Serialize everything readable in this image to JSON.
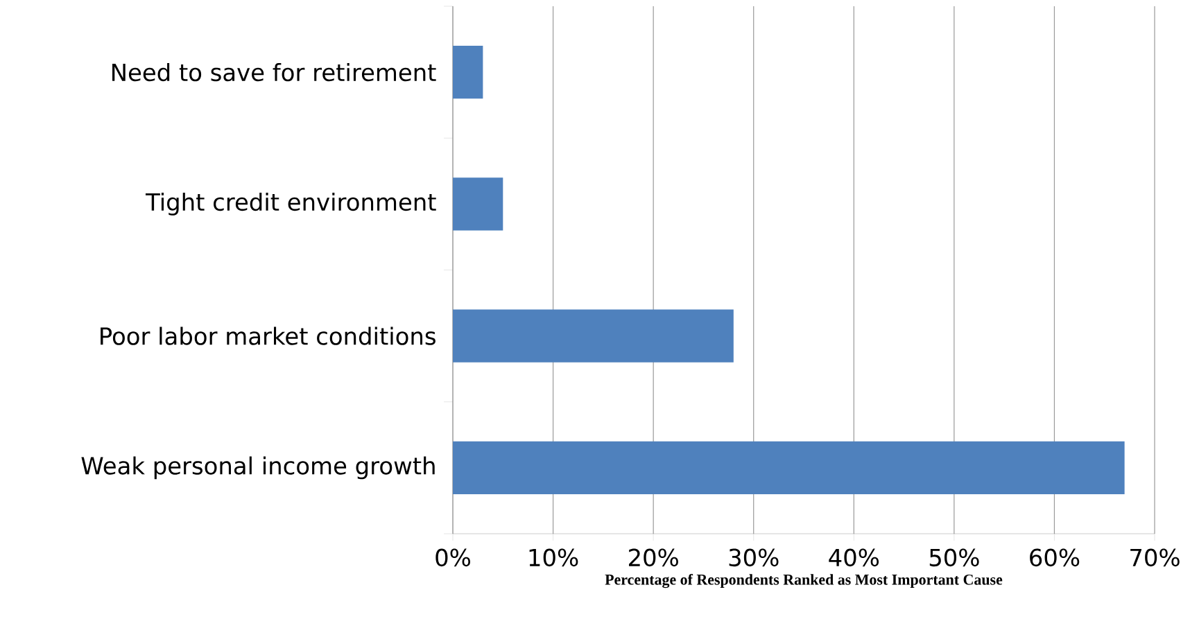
{
  "chart_data": {
    "type": "bar",
    "orientation": "horizontal",
    "categories": [
      "Need to save for retirement",
      "Tight credit environment",
      "Poor labor market conditions",
      "Weak personal income growth"
    ],
    "values": [
      3,
      5,
      28,
      67
    ],
    "color": "#4f81bd",
    "xlim": [
      0,
      70
    ],
    "xticks": [
      {
        "value": 0,
        "label": "0%"
      },
      {
        "value": 10,
        "label": "10%"
      },
      {
        "value": 20,
        "label": "20%"
      },
      {
        "value": 30,
        "label": "30%"
      },
      {
        "value": 40,
        "label": "40%"
      },
      {
        "value": 50,
        "label": "50%"
      },
      {
        "value": 60,
        "label": "60%"
      },
      {
        "value": 70,
        "label": "70%"
      }
    ],
    "grid": "x",
    "xlabel": "Percentage of Respondents Ranked as Most Important Cause"
  }
}
